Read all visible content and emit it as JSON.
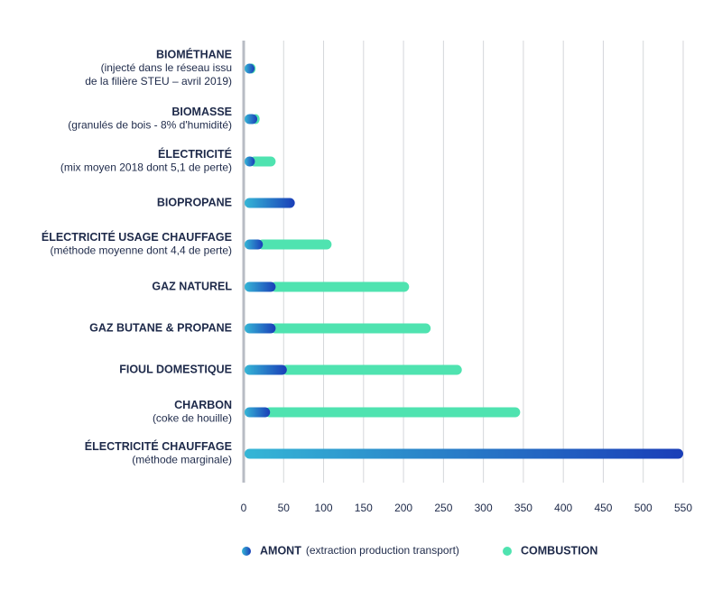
{
  "chart_data": {
    "type": "stacked-hbar",
    "categories": [
      "BIOMÉTHANE",
      "BIOMASSE",
      "ÉLECTRICITÉ",
      "BIOPROPANE",
      "ÉLECTRICITÉ USAGE CHAUFFAGE",
      "GAZ NATUREL",
      "GAZ BUTANE & PROPANE",
      "FIOUL DOMESTIQUE",
      "CHARBON",
      "ÉLECTRICITÉ CHAUFFAGE"
    ],
    "category_notes": [
      [
        "(injecté dans le réseau issu",
        "de la filière STEU – avril 2019)"
      ],
      [
        "(granulés de bois - 8% d'humidité)"
      ],
      [
        "(mix moyen 2018 dont 5,1 de perte)"
      ],
      null,
      [
        "(méthode moyenne dont 4,4 de perte)"
      ],
      null,
      null,
      null,
      [
        "(coke de houille)"
      ],
      [
        "(méthode marginale)"
      ]
    ],
    "series": [
      {
        "name": "AMONT",
        "legend_note": "(extraction production transport)",
        "color": "#1a3eb8",
        "color_light": "#35b6d6",
        "values": [
          12,
          17,
          14,
          64,
          24,
          40,
          40,
          54,
          33,
          550
        ]
      },
      {
        "name": "COMBUSTION",
        "color": "#4fe3b0",
        "values": [
          3,
          3,
          26,
          0,
          86,
          167,
          194,
          219,
          313,
          0
        ]
      }
    ],
    "xlim": [
      0,
      550
    ],
    "xticks": [
      0,
      50,
      100,
      150,
      200,
      250,
      300,
      350,
      400,
      450,
      500,
      550
    ],
    "grid": true
  }
}
